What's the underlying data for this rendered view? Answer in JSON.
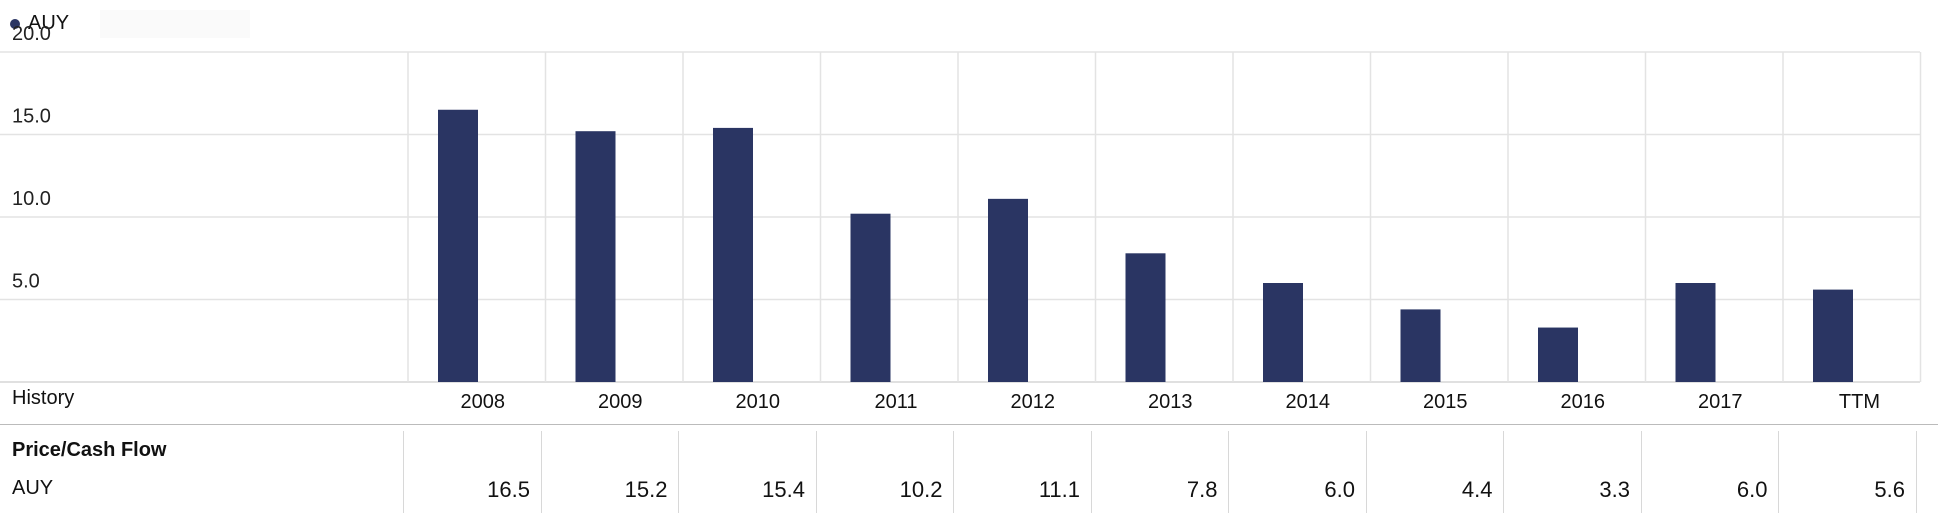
{
  "legend": {
    "label": "AUY",
    "color": "#2a3563"
  },
  "chart_data": {
    "type": "bar",
    "categories": [
      "2008",
      "2009",
      "2010",
      "2011",
      "2012",
      "2013",
      "2014",
      "2015",
      "2016",
      "2017",
      "TTM"
    ],
    "series": [
      {
        "name": "AUY",
        "values": [
          16.5,
          15.2,
          15.4,
          10.2,
          11.1,
          7.8,
          6.0,
          4.4,
          3.3,
          6.0,
          5.6
        ]
      }
    ],
    "y_ticks": [
      "20.0",
      "15.0",
      "10.0",
      "5.0"
    ],
    "ylim": [
      0,
      20
    ],
    "grid": true,
    "bar_color": "#2a3563",
    "x_row_label": "History"
  },
  "table": {
    "metric": "Price/Cash Flow",
    "row_label": "AUY",
    "values": [
      "16.5",
      "15.2",
      "15.4",
      "10.2",
      "11.1",
      "7.8",
      "6.0",
      "4.4",
      "3.3",
      "6.0",
      "5.6"
    ]
  }
}
